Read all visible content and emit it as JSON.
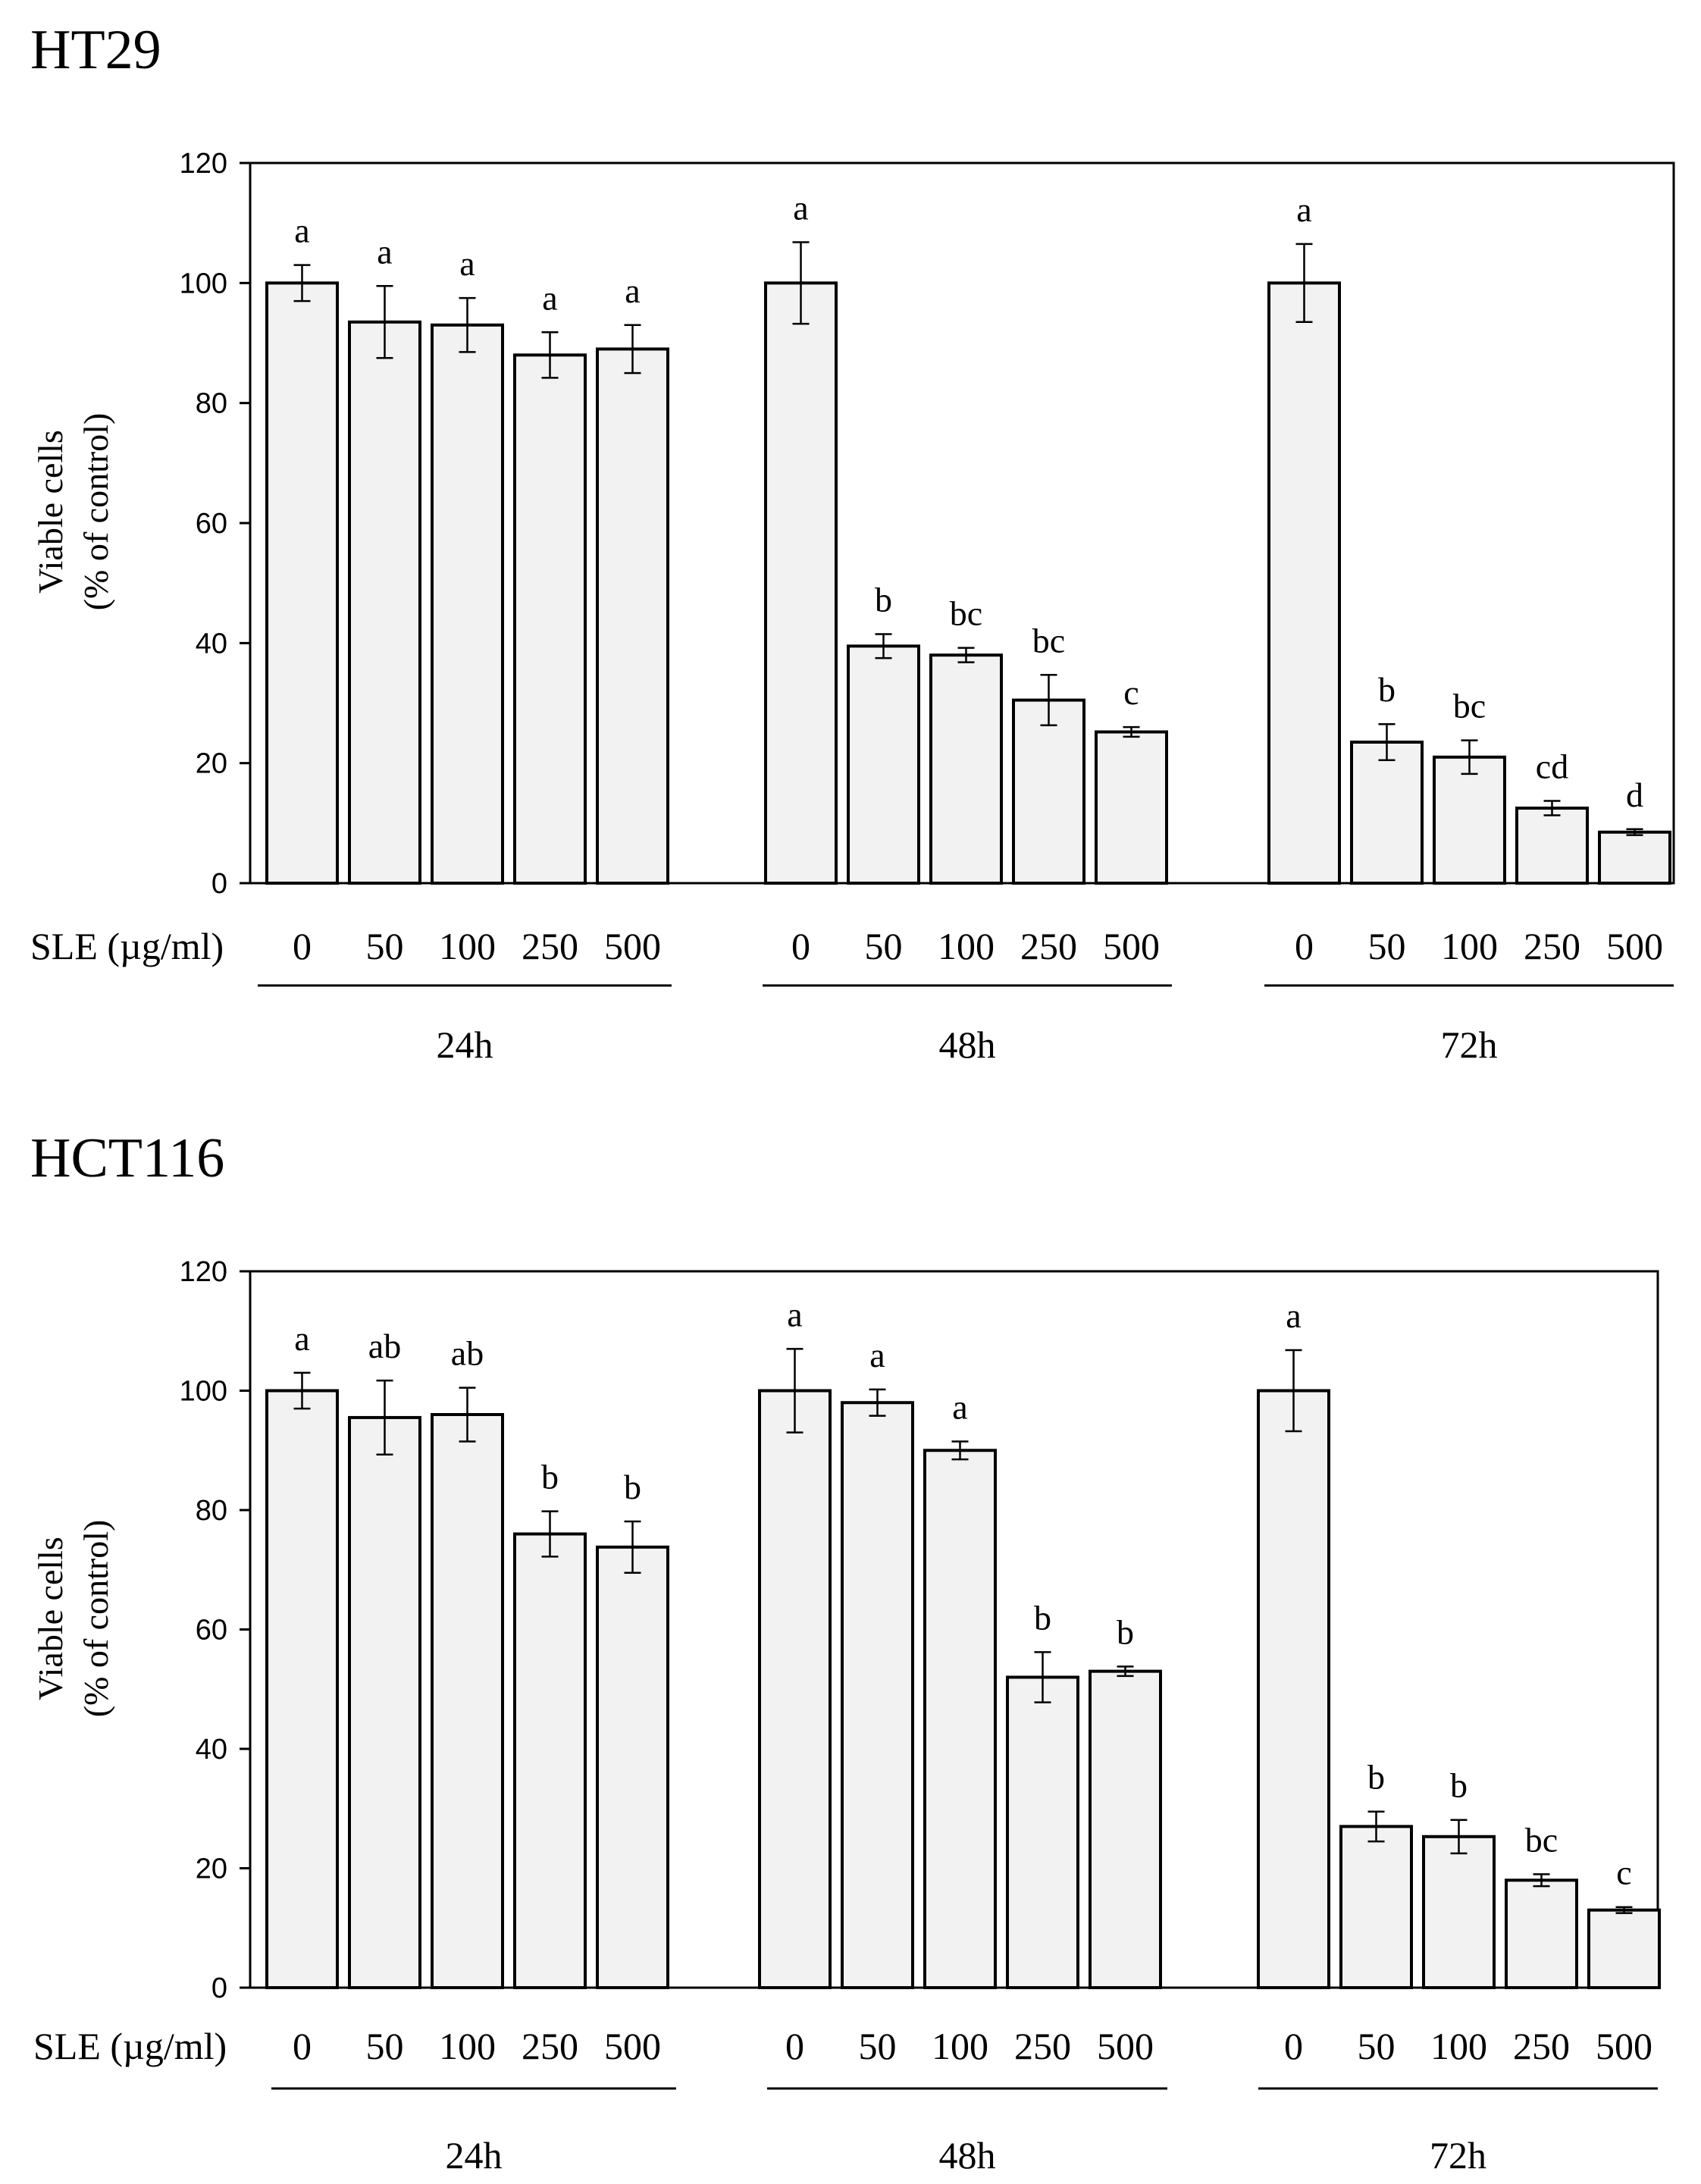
{
  "chart_data": [
    {
      "type": "bar",
      "title": "HT29",
      "ylabel_line1": "Viable cells",
      "ylabel_line2": "(% of control)",
      "xlabel": "SLE (µg/ml)",
      "ylim": [
        0,
        120
      ],
      "yticks": [
        "0",
        "20",
        "40",
        "60",
        "80",
        "100",
        "120"
      ],
      "groups": [
        {
          "label": "24h",
          "bars": [
            {
              "dose": "0",
              "value": 100,
              "error": 3,
              "sig": "a"
            },
            {
              "dose": "50",
              "value": 93.5,
              "error": 6,
              "sig": "a"
            },
            {
              "dose": "100",
              "value": 93,
              "error": 4.5,
              "sig": "a"
            },
            {
              "dose": "250",
              "value": 88,
              "error": 3.8,
              "sig": "a"
            },
            {
              "dose": "500",
              "value": 89,
              "error": 4,
              "sig": "a"
            }
          ]
        },
        {
          "label": "48h",
          "bars": [
            {
              "dose": "0",
              "value": 100,
              "error": 6.8,
              "sig": "a"
            },
            {
              "dose": "50",
              "value": 39.5,
              "error": 2,
              "sig": "b"
            },
            {
              "dose": "100",
              "value": 38,
              "error": 1.2,
              "sig": "bc"
            },
            {
              "dose": "250",
              "value": 30.5,
              "error": 4.2,
              "sig": "bc"
            },
            {
              "dose": "500",
              "value": 25.2,
              "error": 0.8,
              "sig": "c"
            }
          ]
        },
        {
          "label": "72h",
          "bars": [
            {
              "dose": "0",
              "value": 100,
              "error": 6.5,
              "sig": "a"
            },
            {
              "dose": "50",
              "value": 23.5,
              "error": 3,
              "sig": "b"
            },
            {
              "dose": "100",
              "value": 21,
              "error": 2.8,
              "sig": "bc"
            },
            {
              "dose": "250",
              "value": 12.5,
              "error": 1.2,
              "sig": "cd"
            },
            {
              "dose": "500",
              "value": 8.5,
              "error": 0.5,
              "sig": "d"
            }
          ]
        }
      ]
    },
    {
      "type": "bar",
      "title": "HCT116",
      "ylabel_line1": "Viable cells",
      "ylabel_line2": "(% of control)",
      "xlabel": "SLE (µg/ml)",
      "ylim": [
        0,
        120
      ],
      "yticks": [
        "0",
        "20",
        "40",
        "60",
        "80",
        "100",
        "120"
      ],
      "groups": [
        {
          "label": "24h",
          "bars": [
            {
              "dose": "0",
              "value": 100,
              "error": 3,
              "sig": "a"
            },
            {
              "dose": "50",
              "value": 95.5,
              "error": 6.2,
              "sig": "ab"
            },
            {
              "dose": "100",
              "value": 96,
              "error": 4.5,
              "sig": "ab"
            },
            {
              "dose": "250",
              "value": 76,
              "error": 3.8,
              "sig": "b"
            },
            {
              "dose": "500",
              "value": 73.8,
              "error": 4.3,
              "sig": "b"
            }
          ]
        },
        {
          "label": "48h",
          "bars": [
            {
              "dose": "0",
              "value": 100,
              "error": 7,
              "sig": "a"
            },
            {
              "dose": "50",
              "value": 98,
              "error": 2.2,
              "sig": "a"
            },
            {
              "dose": "100",
              "value": 90,
              "error": 1.5,
              "sig": "a"
            },
            {
              "dose": "250",
              "value": 52,
              "error": 4.2,
              "sig": "b"
            },
            {
              "dose": "500",
              "value": 53,
              "error": 0.8,
              "sig": "b"
            }
          ]
        },
        {
          "label": "72h",
          "bars": [
            {
              "dose": "0",
              "value": 100,
              "error": 6.8,
              "sig": "a"
            },
            {
              "dose": "50",
              "value": 27,
              "error": 2.5,
              "sig": "b"
            },
            {
              "dose": "100",
              "value": 25.3,
              "error": 2.8,
              "sig": "b"
            },
            {
              "dose": "250",
              "value": 18,
              "error": 1,
              "sig": "bc"
            },
            {
              "dose": "500",
              "value": 13,
              "error": 0.5,
              "sig": "c"
            }
          ]
        }
      ]
    }
  ]
}
